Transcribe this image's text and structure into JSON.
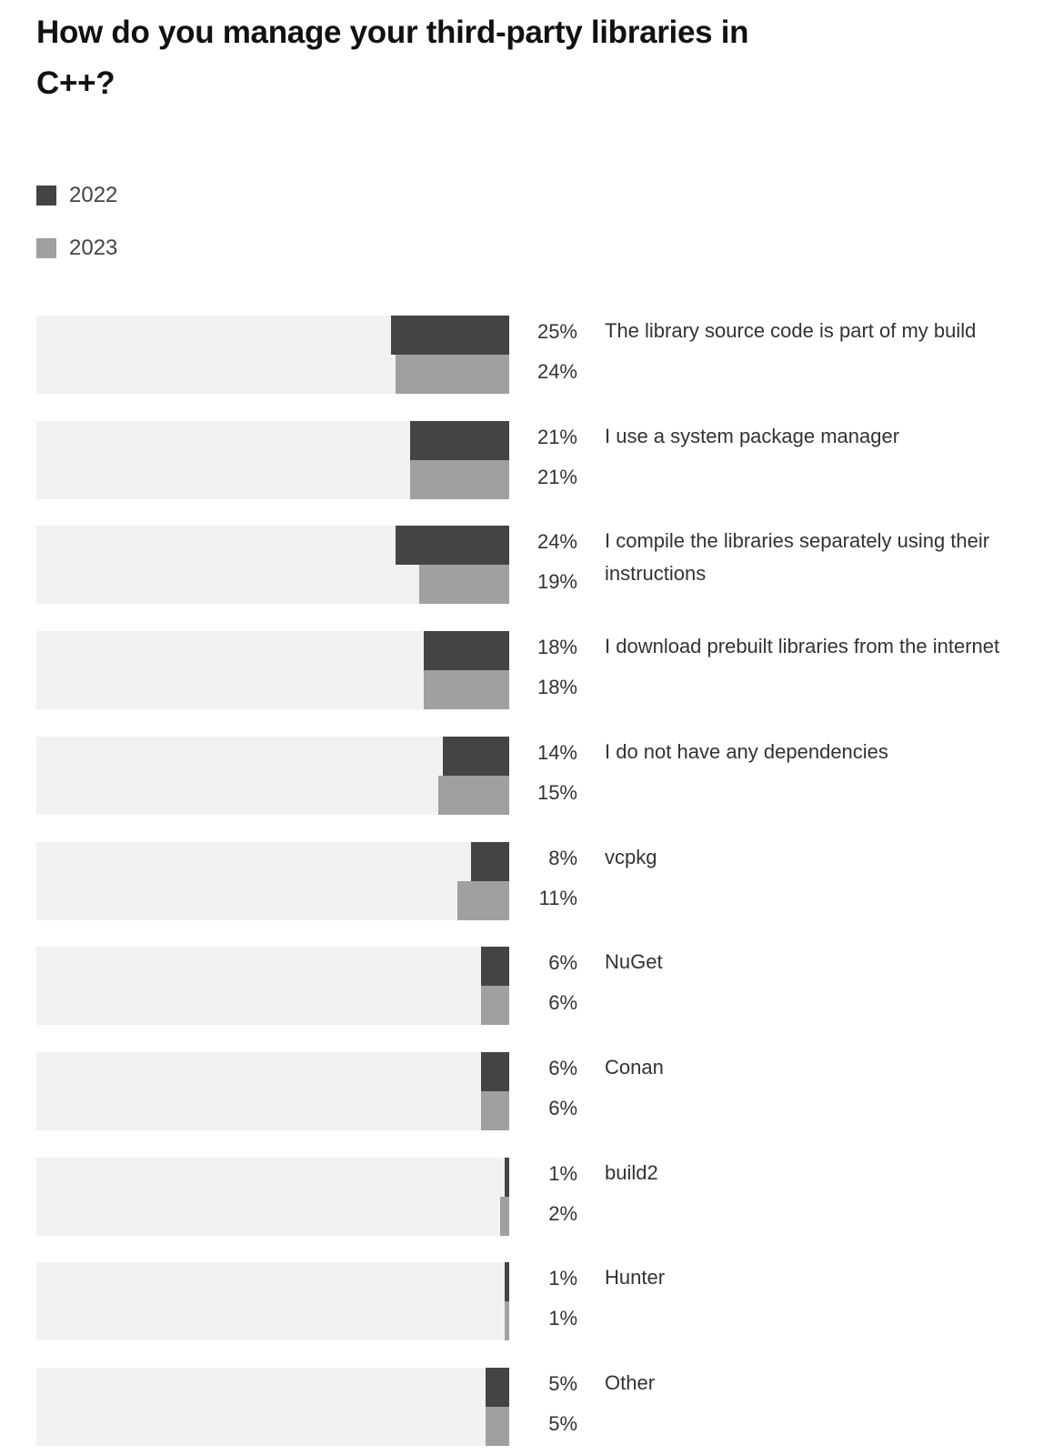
{
  "chart_data": {
    "type": "bar",
    "orientation": "horizontal",
    "title": "How do you manage your third-party libraries in C++?",
    "legend_position": "top-left",
    "grid": false,
    "xlim": [
      0,
      100
    ],
    "categories": [
      "The library source code is part of my build",
      "I use a system package manager",
      "I compile the libraries separately using their instructions",
      "I download prebuilt libraries from the internet",
      "I do not have any dependencies",
      "vcpkg",
      "NuGet",
      "Conan",
      "build2",
      "Hunter",
      "Other"
    ],
    "series": [
      {
        "name": "2022",
        "color": "#444444",
        "values": [
          25,
          21,
          24,
          18,
          14,
          8,
          6,
          6,
          1,
          1,
          5
        ],
        "labels": [
          "25%",
          "21%",
          "24%",
          "18%",
          "14%",
          "8%",
          "6%",
          "6%",
          "1%",
          "1%",
          "5%"
        ]
      },
      {
        "name": "2023",
        "color": "#a0a0a0",
        "values": [
          24,
          21,
          19,
          18,
          15,
          11,
          6,
          6,
          2,
          1,
          5
        ],
        "labels": [
          "24%",
          "21%",
          "19%",
          "18%",
          "15%",
          "11%",
          "6%",
          "6%",
          "2%",
          "1%",
          "5%"
        ]
      }
    ],
    "background_color": "#f2f2f2"
  }
}
